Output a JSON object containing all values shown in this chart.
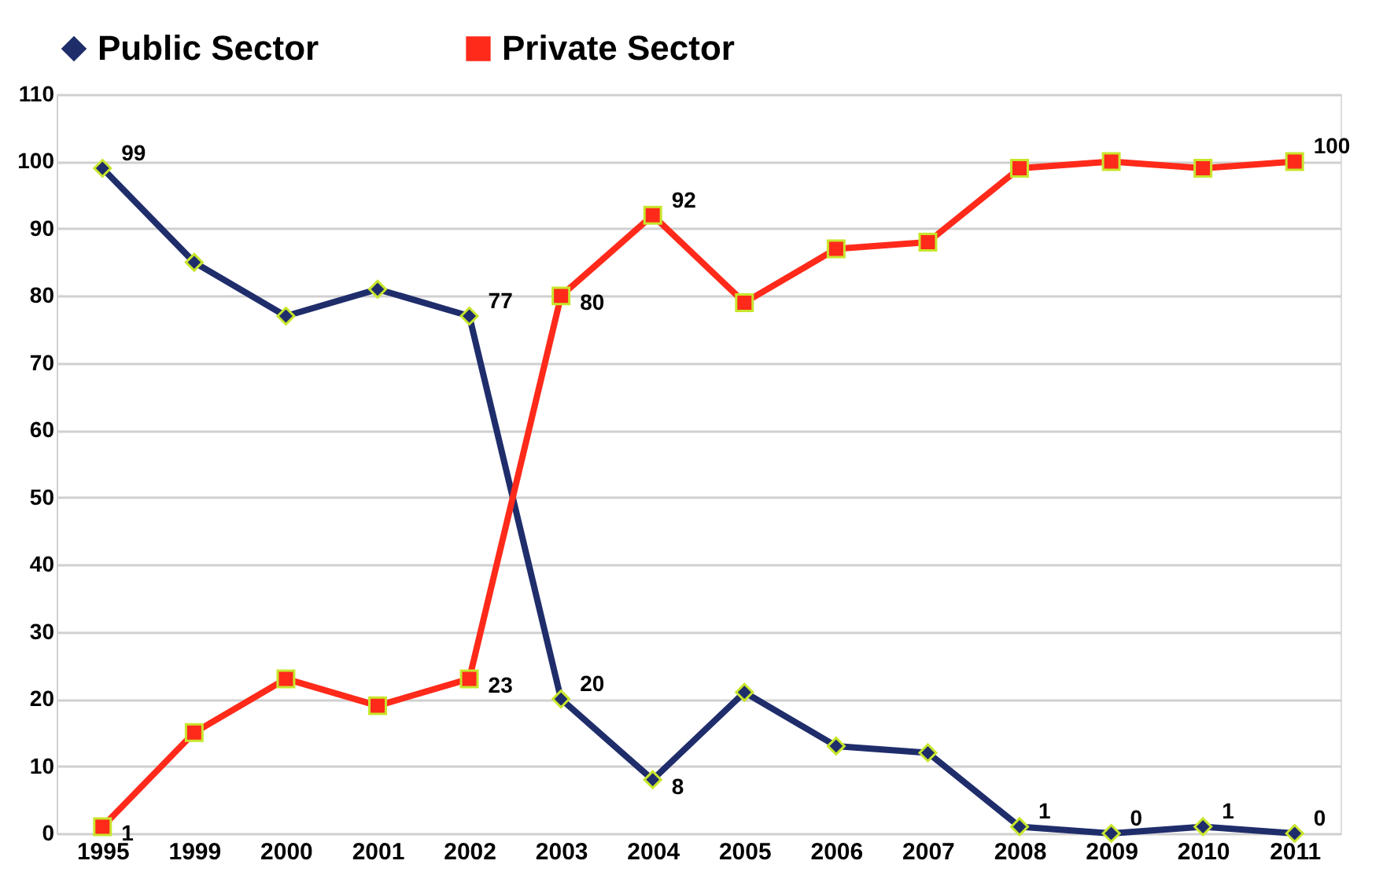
{
  "chart_data": {
    "type": "line",
    "categories": [
      "1995",
      "1999",
      "2000",
      "2001",
      "2002",
      "2003",
      "2004",
      "2005",
      "2006",
      "2007",
      "2008",
      "2009",
      "2010",
      "2011"
    ],
    "series": [
      {
        "name": "Public Sector",
        "color": "#1f2d6b",
        "marker": "diamond",
        "values": [
          99,
          85,
          77,
          81,
          77,
          20,
          8,
          21,
          13,
          12,
          1,
          0,
          1,
          0
        ],
        "value_labels": [
          "99",
          null,
          null,
          null,
          "77",
          "20",
          "8",
          null,
          null,
          null,
          "1",
          "0",
          "1",
          "0"
        ]
      },
      {
        "name": "Private Sector",
        "color": "#ff2a1a",
        "marker": "square",
        "values": [
          1,
          15,
          23,
          19,
          23,
          80,
          92,
          79,
          87,
          88,
          99,
          100,
          99,
          100
        ],
        "value_labels": [
          "1",
          null,
          null,
          null,
          "23",
          "80",
          "92",
          null,
          null,
          null,
          null,
          null,
          null,
          "100"
        ]
      }
    ],
    "ylim": [
      0,
      110
    ],
    "yticks": [
      0,
      10,
      20,
      30,
      40,
      50,
      60,
      70,
      80,
      90,
      100,
      110
    ],
    "grid": "y",
    "legend": "top",
    "line_style": "solid"
  }
}
